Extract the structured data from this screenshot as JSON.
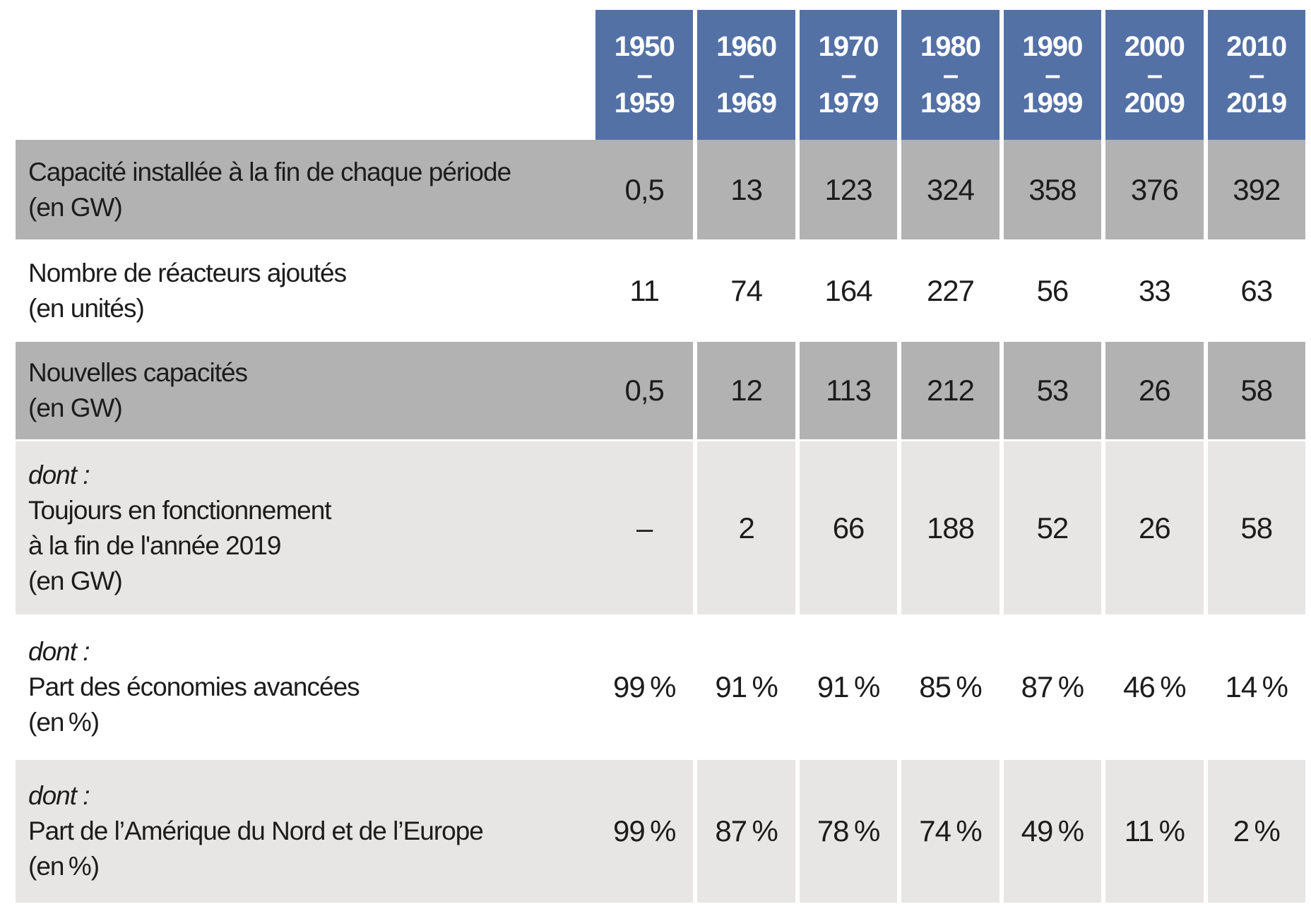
{
  "colors": {
    "header_bg": "#5471a6",
    "row_dark_bg": "#b2b2b2",
    "row_light_bg": "#e7e6e4",
    "header_text": "#ffffff",
    "body_text": "#1c1c1c"
  },
  "chart_data": {
    "type": "table",
    "header_separator": "–",
    "columns": [
      {
        "from": "1950",
        "to": "1959"
      },
      {
        "from": "1960",
        "to": "1969"
      },
      {
        "from": "1970",
        "to": "1979"
      },
      {
        "from": "1980",
        "to": "1989"
      },
      {
        "from": "1990",
        "to": "1999"
      },
      {
        "from": "2000",
        "to": "2009"
      },
      {
        "from": "2010",
        "to": "2019"
      }
    ],
    "rows": [
      {
        "label_lines": [
          "Capacité installée à la fin de chaque période",
          "(en GW)"
        ],
        "values": [
          "0,5",
          "13",
          "123",
          "324",
          "358",
          "376",
          "392"
        ]
      },
      {
        "label_lines": [
          "Nombre de réacteurs ajoutés",
          "(en unités)"
        ],
        "values": [
          "11",
          "74",
          "164",
          "227",
          "56",
          "33",
          "63"
        ]
      },
      {
        "label_lines": [
          "Nouvelles capacités",
          "(en GW)"
        ],
        "values": [
          "0,5",
          "12",
          "113",
          "212",
          "53",
          "26",
          "58"
        ]
      },
      {
        "label_lines": [
          "dont :",
          "Toujours en fonctionnement",
          "à la fin de l'année 2019",
          "(en GW)"
        ],
        "values": [
          "–",
          "2",
          "66",
          "188",
          "52",
          "26",
          "58"
        ]
      },
      {
        "label_lines": [
          "dont :",
          "Part des économies avancées",
          "(en %)"
        ],
        "values": [
          "99 %",
          "91 %",
          "91 %",
          "85 %",
          "87 %",
          "46 %",
          "14 %"
        ]
      },
      {
        "label_lines": [
          "dont :",
          "Part de l’Amérique du Nord et de l’Europe",
          "(en %)"
        ],
        "values": [
          "99 %",
          "87 %",
          "78 %",
          "74 %",
          "49 %",
          "11 %",
          "2 %"
        ]
      }
    ]
  }
}
